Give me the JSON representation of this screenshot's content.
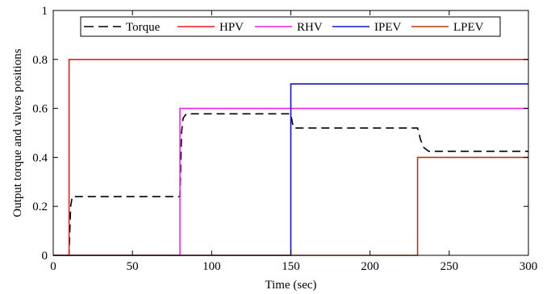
{
  "chart_data": {
    "type": "line",
    "title": "",
    "xlabel": "Time (sec)",
    "ylabel": "Output torque and valves positions",
    "xlim": [
      0,
      300
    ],
    "ylim": [
      0,
      1
    ],
    "xticks": [
      0,
      50,
      100,
      150,
      200,
      250,
      300
    ],
    "yticks": [
      0,
      0.2,
      0.4,
      0.6,
      0.8,
      1
    ],
    "xtick_labels": [
      "0",
      "50",
      "100",
      "150",
      "200",
      "250",
      "300"
    ],
    "ytick_labels": [
      "0",
      "0.2",
      "0.4",
      "0.6",
      "0.8",
      "1"
    ],
    "grid": false,
    "legend": {
      "placement": "top-center",
      "orientation": "horizontal"
    },
    "series": [
      {
        "name": "Torque",
        "color": "#000000",
        "dash": "dashed",
        "x": [
          0,
          10,
          11,
          12,
          80,
          81,
          82,
          84,
          150,
          151,
          152,
          230,
          232,
          234,
          237,
          300
        ],
        "y": [
          0,
          0,
          0.2,
          0.24,
          0.24,
          0.5,
          0.56,
          0.578,
          0.578,
          0.54,
          0.52,
          0.52,
          0.47,
          0.44,
          0.425,
          0.425
        ]
      },
      {
        "name": "HPV",
        "color": "#ee1c1c",
        "dash": "solid",
        "x": [
          0,
          10,
          10,
          300
        ],
        "y": [
          0,
          0,
          0.8,
          0.8
        ]
      },
      {
        "name": "RHV",
        "color": "#ee22ee",
        "dash": "solid",
        "x": [
          0,
          80,
          80,
          300
        ],
        "y": [
          0,
          0,
          0.6,
          0.6
        ]
      },
      {
        "name": "IPEV",
        "color": "#1515c8",
        "dash": "solid",
        "x": [
          0,
          150,
          150,
          300
        ],
        "y": [
          0,
          0,
          0.7,
          0.7
        ]
      },
      {
        "name": "LPEV",
        "color": "#b33a10",
        "dash": "solid",
        "x": [
          0,
          230,
          230,
          300
        ],
        "y": [
          0,
          0,
          0.4,
          0.4
        ]
      }
    ]
  }
}
